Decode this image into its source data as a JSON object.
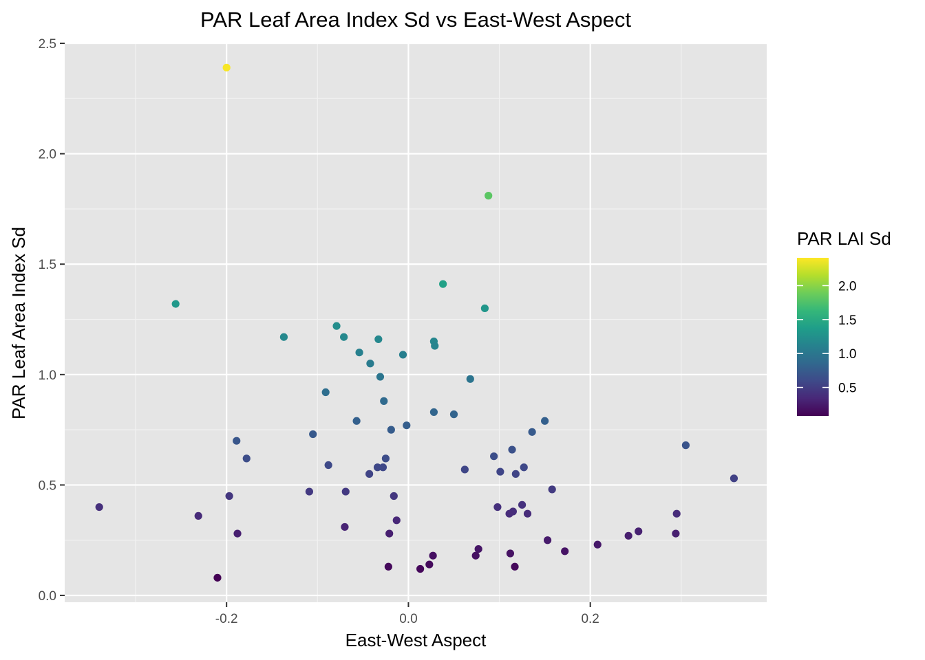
{
  "chart_data": {
    "type": "scatter",
    "title": "PAR Leaf Area Index Sd vs East-West Aspect",
    "xlabel": "East-West Aspect",
    "ylabel": "PAR Leaf Area Index Sd",
    "xlim": [
      -0.378,
      0.394
    ],
    "ylim": [
      -0.031,
      2.5
    ],
    "x_ticks": [
      -0.2,
      0.0,
      0.2
    ],
    "x_tick_labels": [
      "-0.2",
      "0.0",
      "0.2"
    ],
    "y_ticks": [
      0.0,
      0.5,
      1.0,
      1.5,
      2.0,
      2.5
    ],
    "y_tick_labels": [
      "0.0",
      "0.5",
      "1.0",
      "1.5",
      "2.0",
      "2.5"
    ],
    "grid": true,
    "legend": {
      "title": "PAR LAI Sd",
      "position": "right",
      "range": [
        0.08,
        2.41
      ],
      "ticks": [
        0.5,
        1.0,
        1.5,
        2.0
      ],
      "tick_labels": [
        "0.5",
        "1.0",
        "1.5",
        "2.0"
      ],
      "colors": [
        "#440154",
        "#482878",
        "#3E4A89",
        "#31688E",
        "#26828E",
        "#1F9E89",
        "#35B779",
        "#6DCD59",
        "#B4DE2C",
        "#FDE725"
      ]
    },
    "colors": {
      "panel": "#e5e5e5",
      "grid_major": "#ffffff",
      "grid_minor": "#f2f2f2"
    },
    "x": [
      -0.2,
      0.088,
      -0.256,
      0.038,
      0.084,
      -0.079,
      -0.137,
      -0.071,
      -0.033,
      0.028,
      0.029,
      -0.054,
      -0.042,
      -0.006,
      -0.031,
      0.068,
      -0.091,
      -0.027,
      0.028,
      0.05,
      -0.057,
      0.15,
      -0.002,
      -0.019,
      0.136,
      -0.105,
      -0.189,
      0.305,
      0.094,
      -0.178,
      0.114,
      -0.025,
      -0.088,
      0.062,
      0.101,
      0.118,
      0.127,
      -0.034,
      -0.028,
      -0.043,
      0.358,
      0.158,
      -0.109,
      -0.069,
      -0.016,
      0.125,
      -0.34,
      0.098,
      0.115,
      0.111,
      0.131,
      -0.197,
      -0.231,
      -0.013,
      0.295,
      0.253,
      0.242,
      0.294,
      -0.07,
      -0.021,
      -0.188,
      0.153,
      0.208,
      0.077,
      0.027,
      0.074,
      0.112,
      0.172,
      0.023,
      -0.022,
      0.117,
      0.013,
      -0.21
    ],
    "y": [
      2.39,
      1.81,
      1.32,
      1.41,
      1.3,
      1.22,
      1.17,
      1.17,
      1.16,
      1.15,
      1.13,
      1.1,
      1.05,
      1.09,
      0.99,
      0.98,
      0.92,
      0.88,
      0.83,
      0.82,
      0.79,
      0.79,
      0.77,
      0.75,
      0.74,
      0.73,
      0.7,
      0.68,
      0.63,
      0.62,
      0.66,
      0.62,
      0.59,
      0.57,
      0.56,
      0.55,
      0.58,
      0.58,
      0.58,
      0.55,
      0.53,
      0.48,
      0.47,
      0.47,
      0.45,
      0.41,
      0.4,
      0.4,
      0.38,
      0.37,
      0.37,
      0.45,
      0.36,
      0.34,
      0.37,
      0.29,
      0.27,
      0.28,
      0.31,
      0.28,
      0.28,
      0.25,
      0.23,
      0.21,
      0.18,
      0.18,
      0.19,
      0.2,
      0.14,
      0.13,
      0.13,
      0.12,
      0.08
    ]
  }
}
